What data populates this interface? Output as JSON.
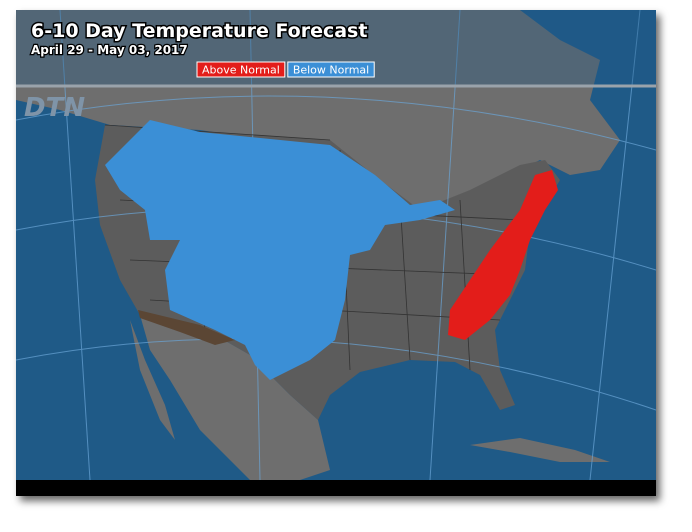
{
  "header": {
    "title": "6-10 Day Temperature Forecast",
    "subtitle": "April 29 - May 03, 2017"
  },
  "legend": {
    "items": [
      {
        "label": "Above Normal",
        "color": "#e31d1a"
      },
      {
        "label": "Below Normal",
        "color": "#3b8fd6"
      }
    ]
  },
  "logo": "DTN"
}
